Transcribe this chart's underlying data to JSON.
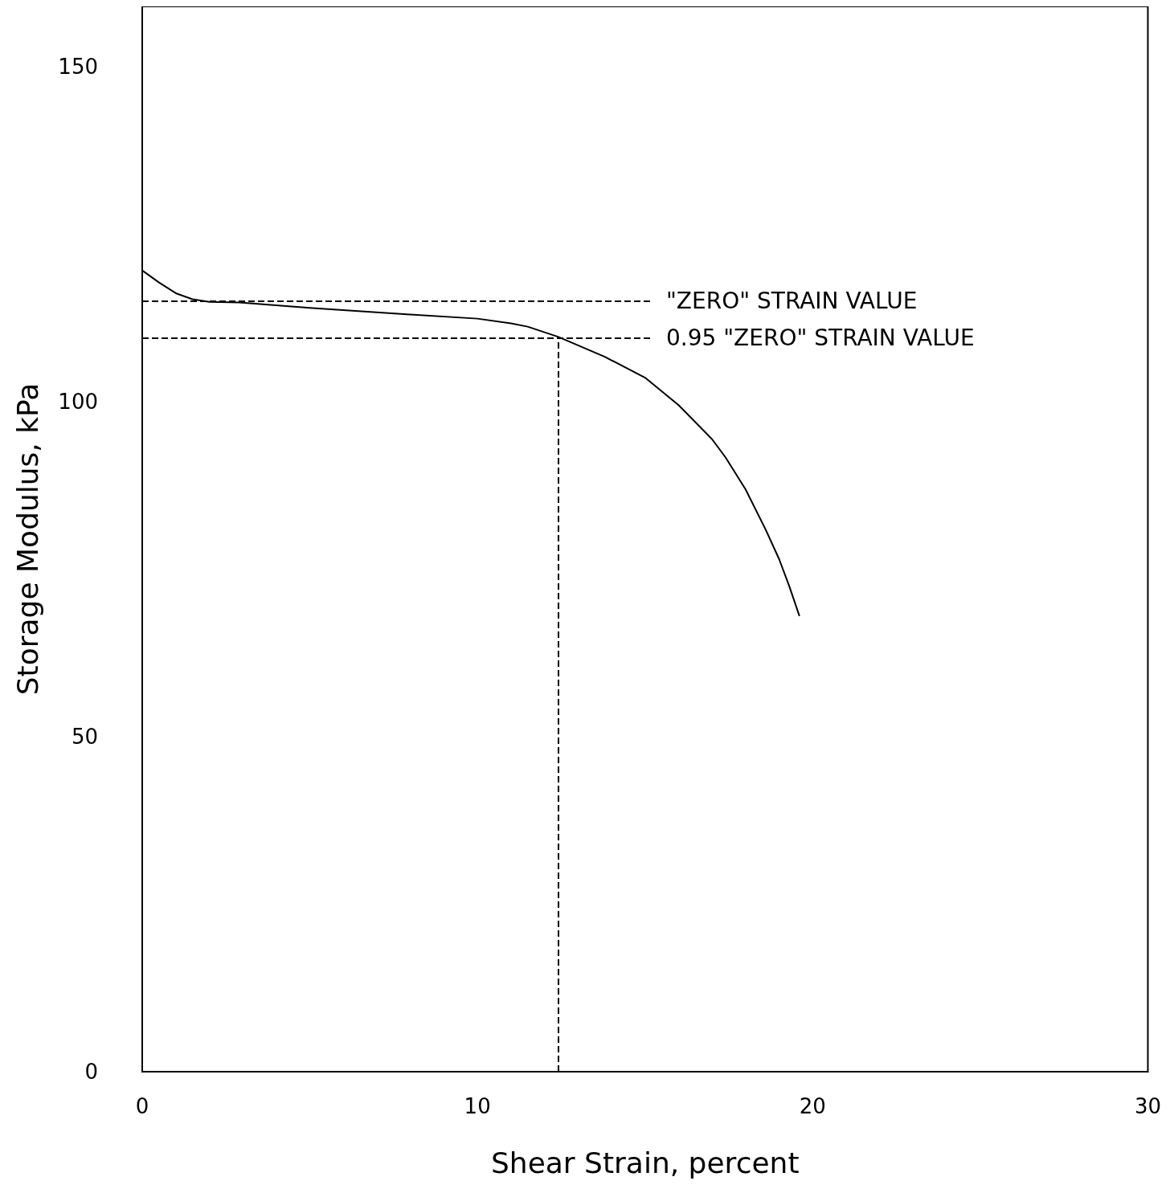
{
  "chart_data": {
    "type": "line",
    "xlabel": "Shear Strain, percent",
    "ylabel": "Storage Modulus, kPa",
    "x": [
      0,
      0.5,
      1,
      1.5,
      2,
      2.9,
      5,
      8,
      10,
      11,
      11.5,
      12.4,
      13.8,
      15,
      16,
      17,
      17.4,
      18,
      18.6,
      19,
      19.3,
      19.6
    ],
    "values": [
      119.6,
      117.8,
      116.2,
      115.3,
      114.9,
      114.8,
      114.0,
      113.0,
      112.4,
      111.7,
      111.2,
      109.7,
      106.7,
      103.6,
      99.5,
      94.4,
      91.7,
      86.9,
      80.9,
      76.5,
      72.5,
      68.1
    ],
    "color": "#000000",
    "marker": "none",
    "line_style": "solid",
    "xlim": [
      0,
      30
    ],
    "xticks": [
      0,
      10,
      20,
      30
    ],
    "ylim": [
      0,
      159
    ],
    "yticks": [
      0,
      50,
      100,
      150
    ],
    "grid": false,
    "ref_lines": [
      {
        "axis": "y",
        "value": 115.0,
        "label": "\"ZERO\" STRAIN VALUE",
        "line_style": "dashed",
        "color": "#000000"
      },
      {
        "axis": "y",
        "value": 109.5,
        "label": "0.95 \"ZERO\" STRAIN VALUE",
        "line_style": "dashed",
        "color": "#000000"
      },
      {
        "axis": "x",
        "value": 12.4,
        "line_style": "dashed",
        "color": "#000000"
      }
    ]
  }
}
